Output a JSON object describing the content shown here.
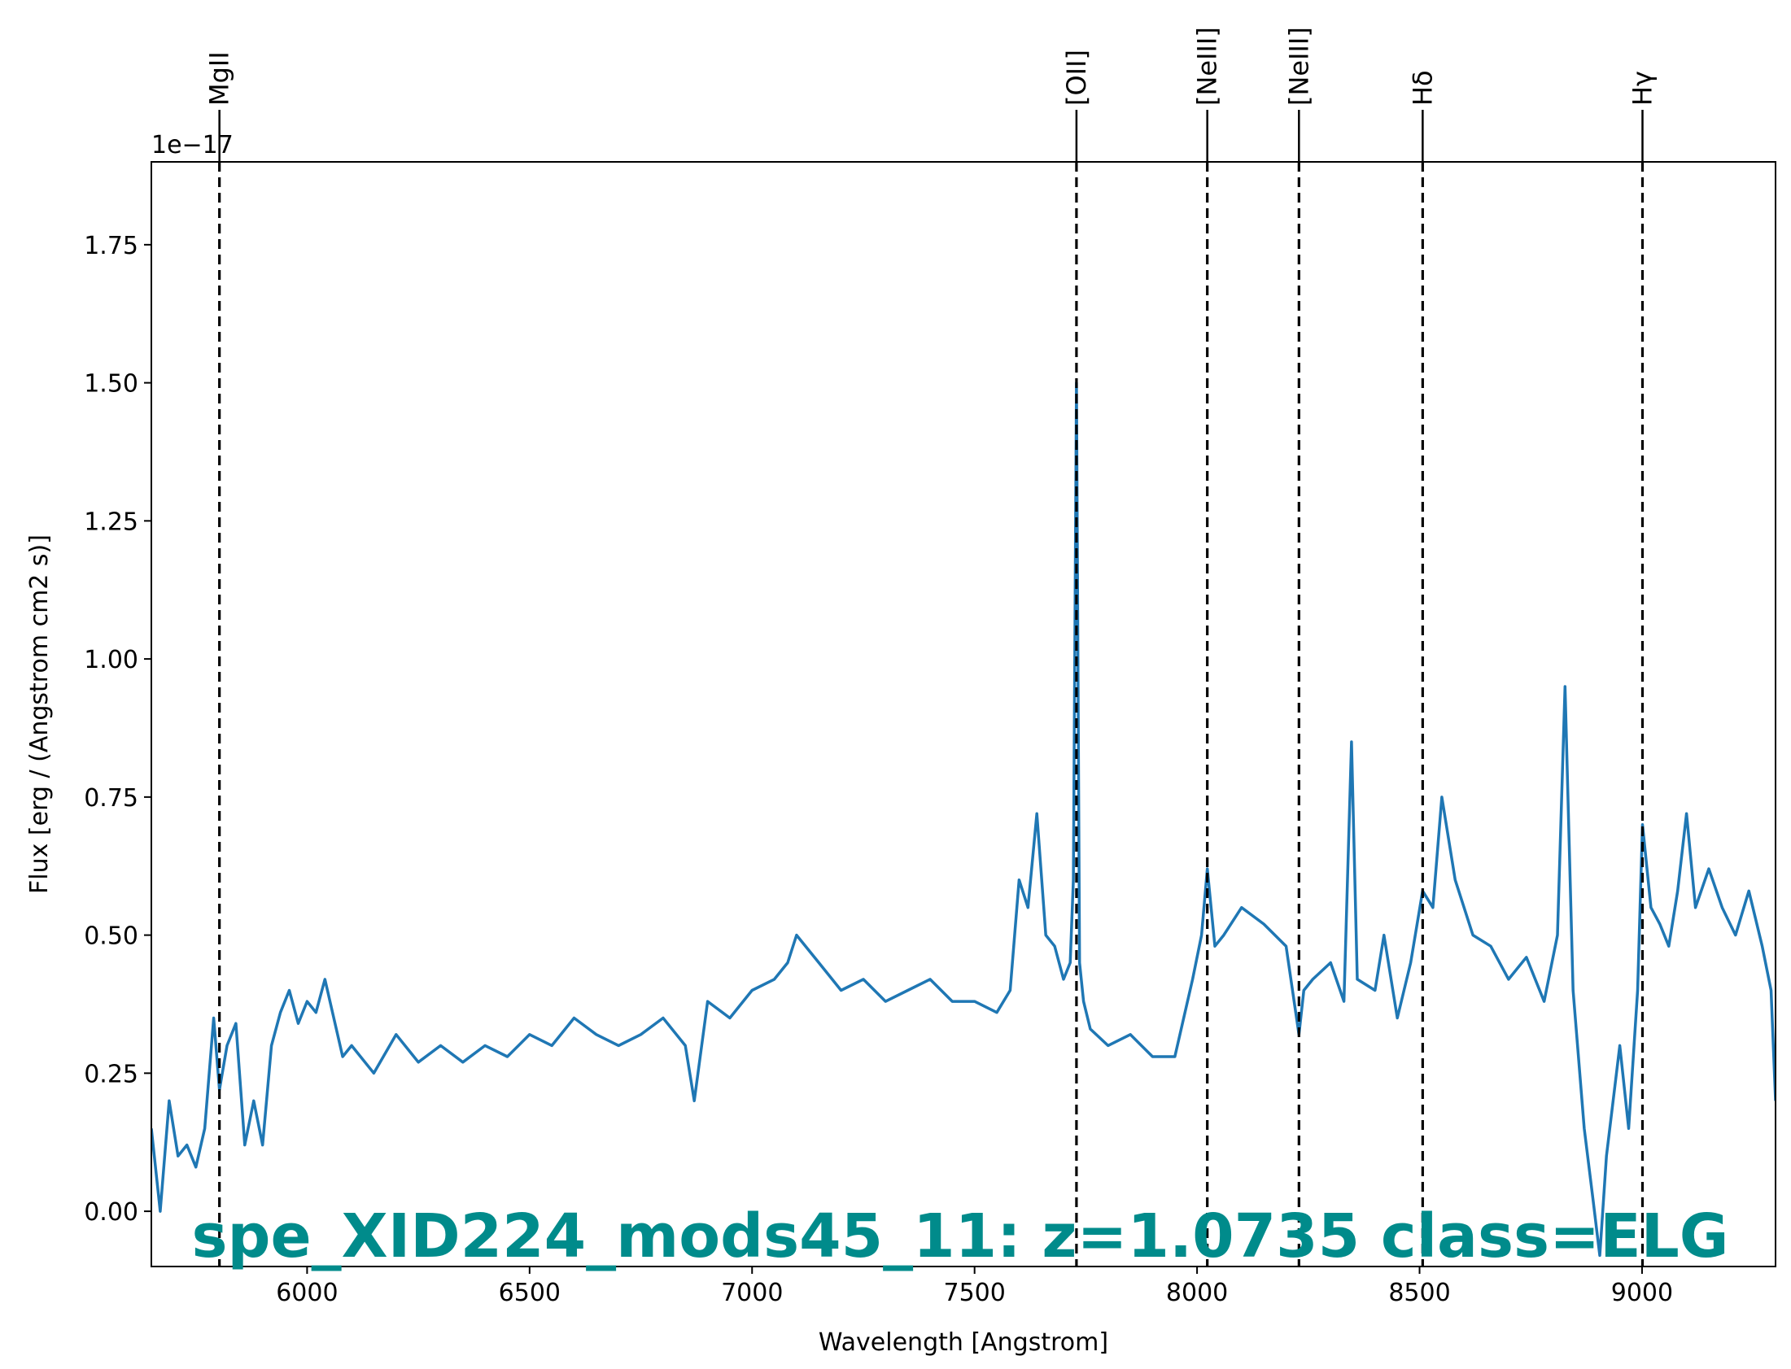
{
  "chart_data": {
    "type": "line",
    "title": "spe_XID224_mods45_11: z=1.0735 class=ELG",
    "title_color": "#008b8b",
    "xlabel": "Wavelength [Angstrom]",
    "ylabel": "Flux [erg / (Angstrom cm2 s)]",
    "y_offset_label": "1e−17",
    "xlim": [
      5650,
      9300
    ],
    "ylim": [
      -0.1,
      1.9
    ],
    "x_ticks": [
      6000,
      6500,
      7000,
      7500,
      8000,
      8500,
      9000
    ],
    "x_tick_labels": [
      "6000",
      "6500",
      "7000",
      "7500",
      "8000",
      "8500",
      "9000"
    ],
    "y_ticks": [
      0.0,
      0.25,
      0.5,
      0.75,
      1.0,
      1.25,
      1.5,
      1.75
    ],
    "y_tick_labels": [
      "0.00",
      "0.25",
      "0.50",
      "0.75",
      "1.00",
      "1.25",
      "1.50",
      "1.75"
    ],
    "grid": false,
    "line_color": "#1f77b4",
    "spectral_lines": [
      {
        "name": "MgII",
        "wavelength": 5803
      },
      {
        "name": "[OII]",
        "wavelength": 7729
      },
      {
        "name": "[NeIII]",
        "wavelength": 8023
      },
      {
        "name": "[NeIII]",
        "wavelength": 8229
      },
      {
        "name": "Hδ",
        "wavelength": 8507
      },
      {
        "name": "Hγ",
        "wavelength": 9001
      }
    ],
    "series": [
      {
        "x": [
          5650,
          5670,
          5690,
          5710,
          5730,
          5750,
          5770,
          5790,
          5803,
          5820,
          5840,
          5860,
          5880,
          5900,
          5920,
          5940,
          5960,
          5980,
          6000,
          6020,
          6040,
          6060,
          6080,
          6100,
          6150,
          6200,
          6250,
          6300,
          6350,
          6400,
          6450,
          6500,
          6550,
          6600,
          6650,
          6700,
          6750,
          6800,
          6850,
          6870,
          6900,
          6950,
          7000,
          7050,
          7080,
          7100,
          7150,
          7200,
          7250,
          7300,
          7350,
          7400,
          7450,
          7500,
          7550,
          7580,
          7600,
          7620,
          7640,
          7660,
          7680,
          7700,
          7715,
          7722,
          7729,
          7736,
          7745,
          7760,
          7800,
          7850,
          7900,
          7950,
          7990,
          8010,
          8023,
          8040,
          8060,
          8100,
          8150,
          8200,
          8229,
          8240,
          8260,
          8300,
          8330,
          8347,
          8360,
          8400,
          8420,
          8450,
          8480,
          8507,
          8530,
          8550,
          8580,
          8620,
          8660,
          8700,
          8740,
          8780,
          8810,
          8827,
          8845,
          8870,
          8890,
          8905,
          8920,
          8950,
          8970,
          8990,
          9001,
          9020,
          9040,
          9060,
          9080,
          9100,
          9120,
          9150,
          9180,
          9210,
          9240,
          9270,
          9290,
          9300
        ],
        "y": [
          0.15,
          0.0,
          0.2,
          0.1,
          0.12,
          0.08,
          0.15,
          0.35,
          0.22,
          0.3,
          0.34,
          0.12,
          0.2,
          0.12,
          0.3,
          0.36,
          0.4,
          0.34,
          0.38,
          0.36,
          0.42,
          0.35,
          0.28,
          0.3,
          0.25,
          0.32,
          0.27,
          0.3,
          0.27,
          0.3,
          0.28,
          0.32,
          0.3,
          0.35,
          0.32,
          0.3,
          0.32,
          0.35,
          0.3,
          0.2,
          0.38,
          0.35,
          0.4,
          0.42,
          0.45,
          0.5,
          0.45,
          0.4,
          0.42,
          0.38,
          0.4,
          0.42,
          0.38,
          0.38,
          0.36,
          0.4,
          0.6,
          0.55,
          0.72,
          0.5,
          0.48,
          0.42,
          0.45,
          0.6,
          1.5,
          0.45,
          0.38,
          0.33,
          0.3,
          0.32,
          0.28,
          0.28,
          0.42,
          0.5,
          0.62,
          0.48,
          0.5,
          0.55,
          0.52,
          0.48,
          0.32,
          0.4,
          0.42,
          0.45,
          0.38,
          0.85,
          0.42,
          0.4,
          0.5,
          0.35,
          0.45,
          0.58,
          0.55,
          0.75,
          0.6,
          0.5,
          0.48,
          0.42,
          0.46,
          0.38,
          0.5,
          0.95,
          0.4,
          0.15,
          0.02,
          -0.08,
          0.1,
          0.3,
          0.15,
          0.4,
          0.7,
          0.55,
          0.52,
          0.48,
          0.58,
          0.72,
          0.55,
          0.62,
          0.55,
          0.5,
          0.58,
          0.48,
          0.4,
          0.2
        ]
      }
    ]
  }
}
